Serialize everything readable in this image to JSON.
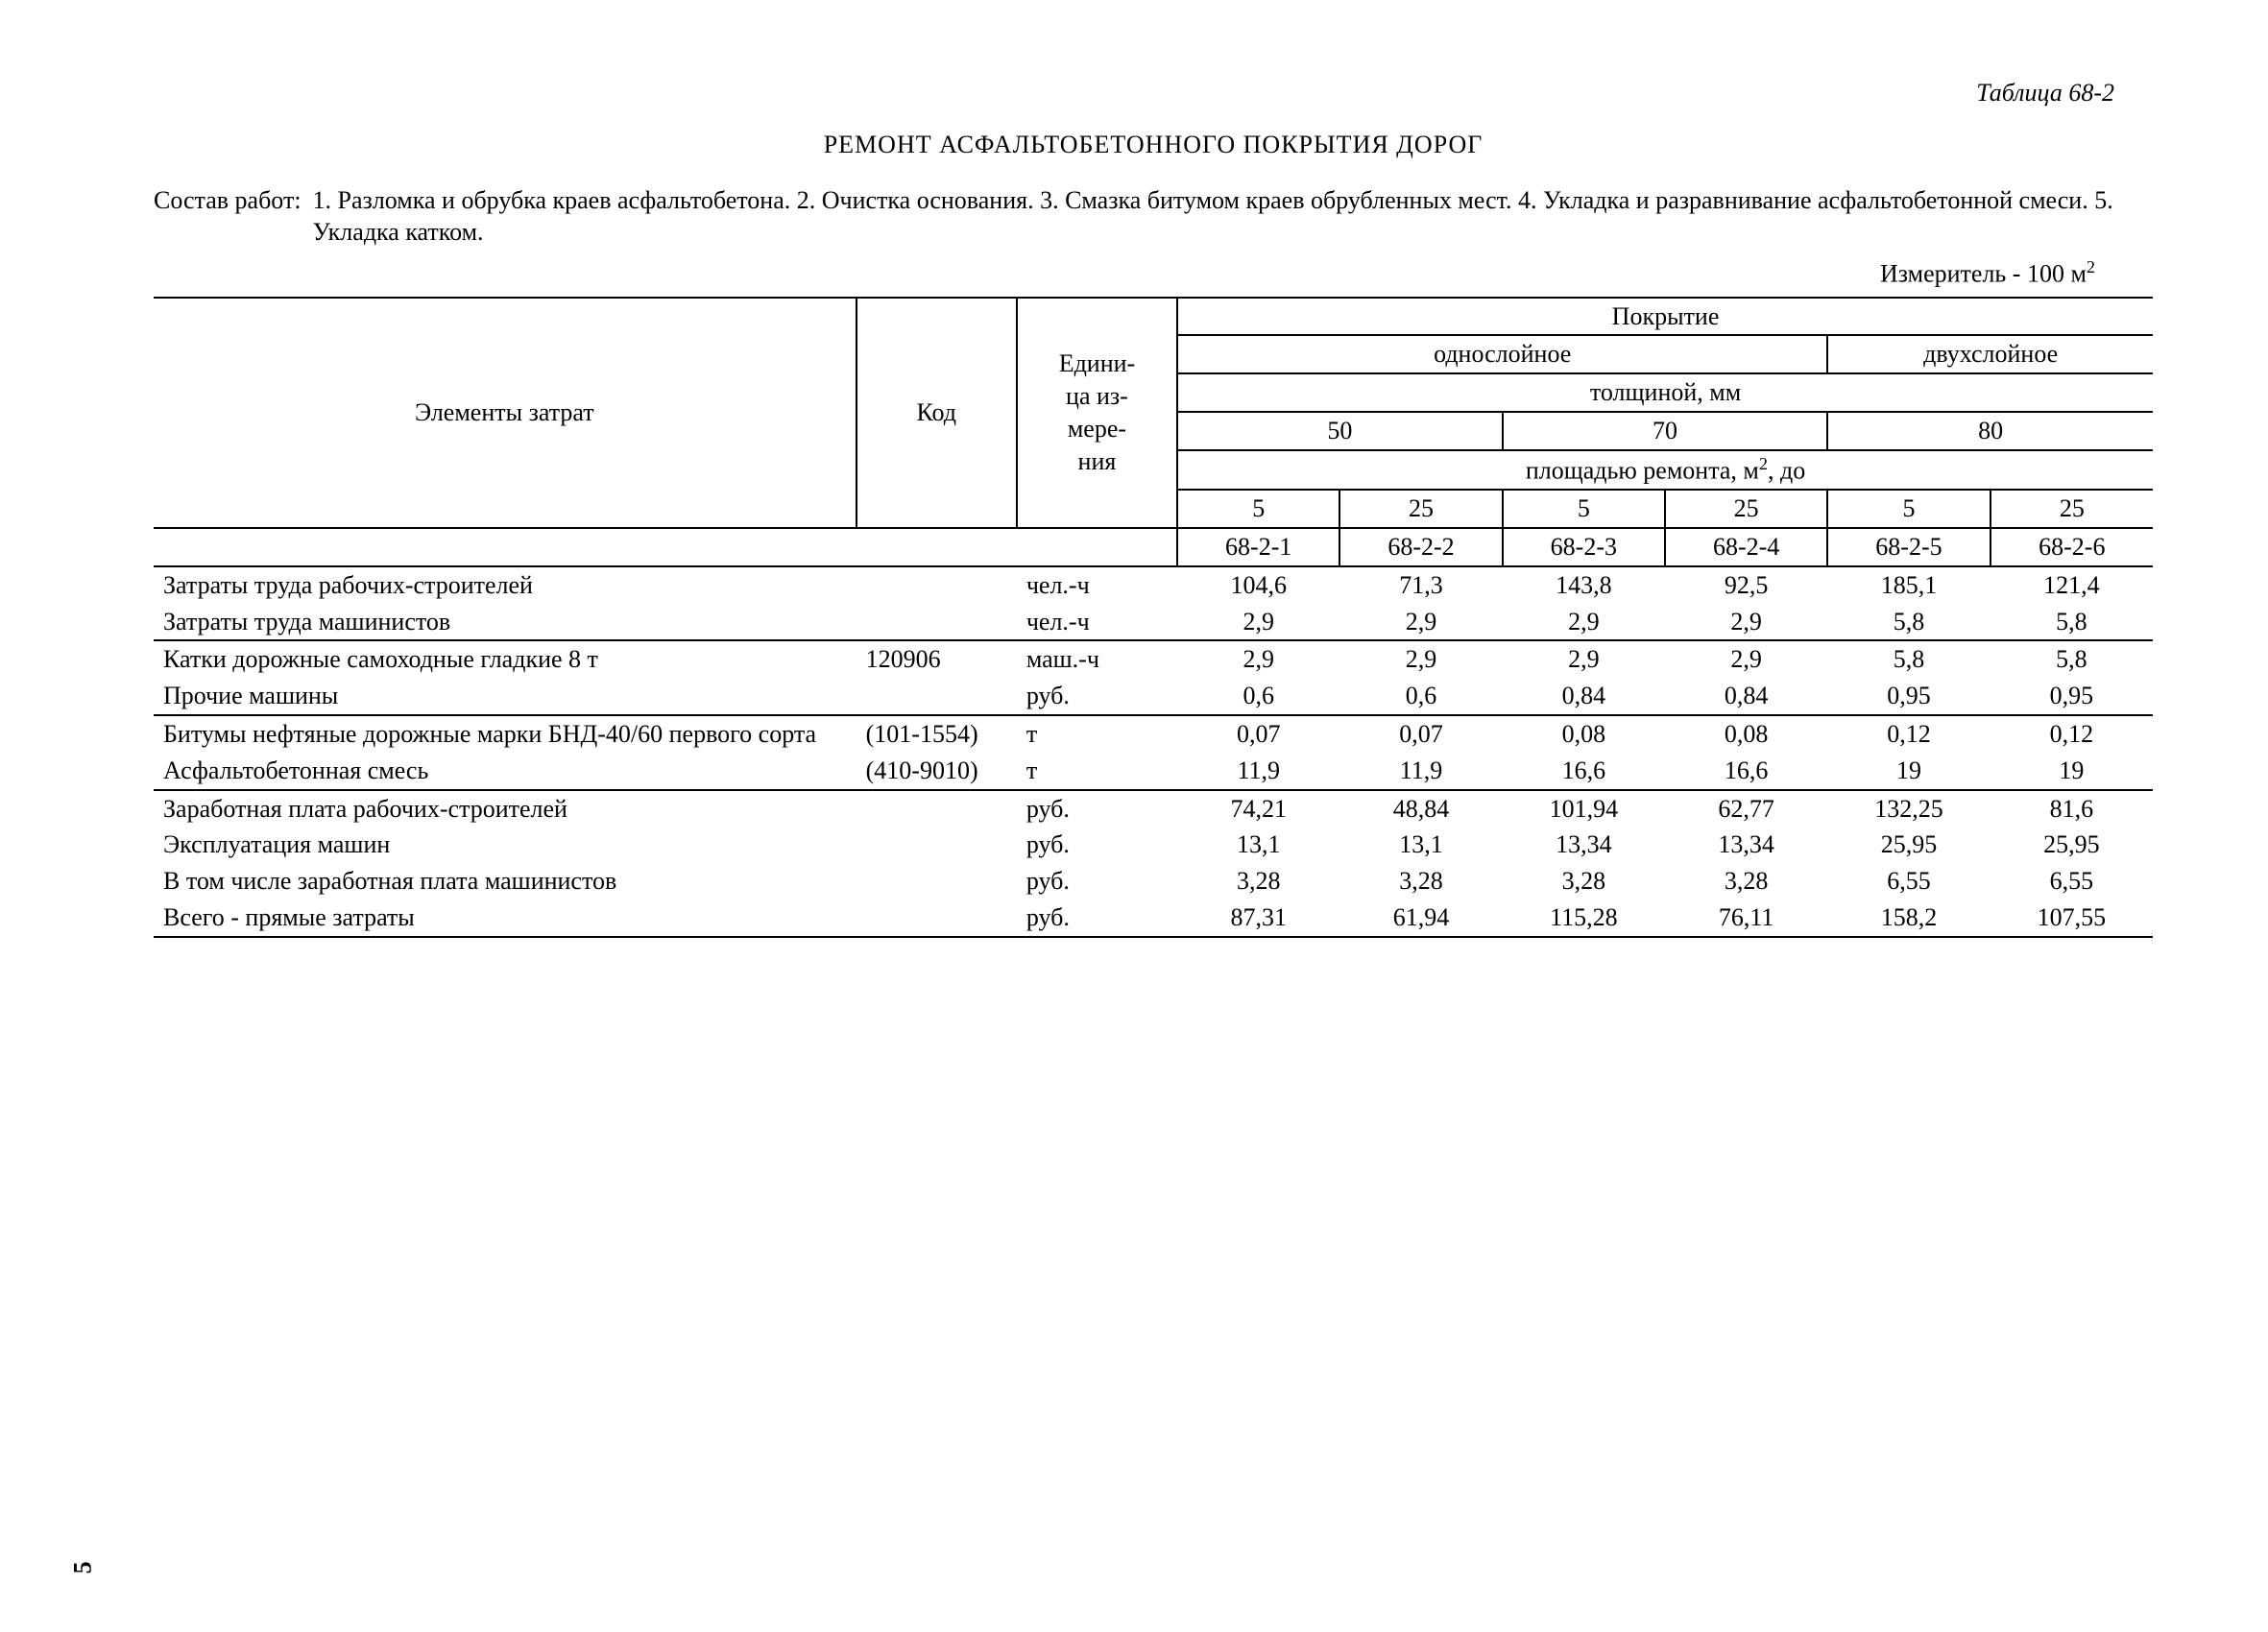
{
  "tableLabel": "Таблица 68-2",
  "title": "РЕМОНТ АСФАЛЬТОБЕТОННОГО ПОКРЫТИЯ ДОРОГ",
  "workScopeLabel": "Состав работ:",
  "workScopeText": "1. Разломка и обрубка краев асфальтобетона. 2. Очистка основания. 3. Смазка битумом краев обрубленных мест. 4. Укладка и разравнивание асфальтобетонной смеси. 5. Укладка катком.",
  "measurePrefix": "Измеритель - 100 м",
  "measureExp": "2",
  "header": {
    "elements": "Элементы затрат",
    "code": "Код",
    "unit": "Едини-\nца из-\nмере-\nния",
    "coating": "Покрытие",
    "singleLayer": "однослойное",
    "doubleLayer": "двухслойное",
    "thickness": "толщиной, мм",
    "t50": "50",
    "t70": "70",
    "t80": "80",
    "areaPrefix": "площадью ремонта, м",
    "areaExp": "2",
    "areaSuffix": ", до",
    "a5": "5",
    "a25": "25",
    "codes": [
      "68-2-1",
      "68-2-2",
      "68-2-3",
      "68-2-4",
      "68-2-5",
      "68-2-6"
    ]
  },
  "rows": [
    {
      "name": "Затраты труда рабочих-строителей",
      "code": "",
      "unit": "чел.-ч",
      "vals": [
        "104,6",
        "71,3",
        "143,8",
        "92,5",
        "185,1",
        "121,4"
      ],
      "group": 0
    },
    {
      "name": "Затраты труда машинистов",
      "code": "",
      "unit": "чел.-ч",
      "vals": [
        "2,9",
        "2,9",
        "2,9",
        "2,9",
        "5,8",
        "5,8"
      ],
      "group": 0
    },
    {
      "name": "Катки дорожные самоходные гладкие 8 т",
      "code": "120906",
      "unit": "маш.-ч",
      "vals": [
        "2,9",
        "2,9",
        "2,9",
        "2,9",
        "5,8",
        "5,8"
      ],
      "group": 1
    },
    {
      "name": "Прочие машины",
      "code": "",
      "unit": "руб.",
      "vals": [
        "0,6",
        "0,6",
        "0,84",
        "0,84",
        "0,95",
        "0,95"
      ],
      "group": 1
    },
    {
      "name": "Битумы нефтяные дорожные марки БНД-40/60 первого сорта",
      "code": "(101-1554)",
      "unit": "т",
      "vals": [
        "0,07",
        "0,07",
        "0,08",
        "0,08",
        "0,12",
        "0,12"
      ],
      "group": 2
    },
    {
      "name": "Асфальтобетонная смесь",
      "code": "(410-9010)",
      "unit": "т",
      "vals": [
        "11,9",
        "11,9",
        "16,6",
        "16,6",
        "19",
        "19"
      ],
      "group": 2
    },
    {
      "name": "Заработная плата рабочих-строителей",
      "code": "",
      "unit": "руб.",
      "vals": [
        "74,21",
        "48,84",
        "101,94",
        "62,77",
        "132,25",
        "81,6"
      ],
      "group": 3
    },
    {
      "name": "Эксплуатация машин",
      "code": "",
      "unit": "руб.",
      "vals": [
        "13,1",
        "13,1",
        "13,34",
        "13,34",
        "25,95",
        "25,95"
      ],
      "group": 3
    },
    {
      "name": "В том числе заработная плата машинистов",
      "code": "",
      "unit": "руб.",
      "vals": [
        "3,28",
        "3,28",
        "3,28",
        "3,28",
        "6,55",
        "6,55"
      ],
      "group": 3
    },
    {
      "name": "Всего - прямые затраты",
      "code": "",
      "unit": "руб.",
      "vals": [
        "87,31",
        "61,94",
        "115,28",
        "76,11",
        "158,2",
        "107,55"
      ],
      "group": 3
    }
  ],
  "pageNum": "5"
}
